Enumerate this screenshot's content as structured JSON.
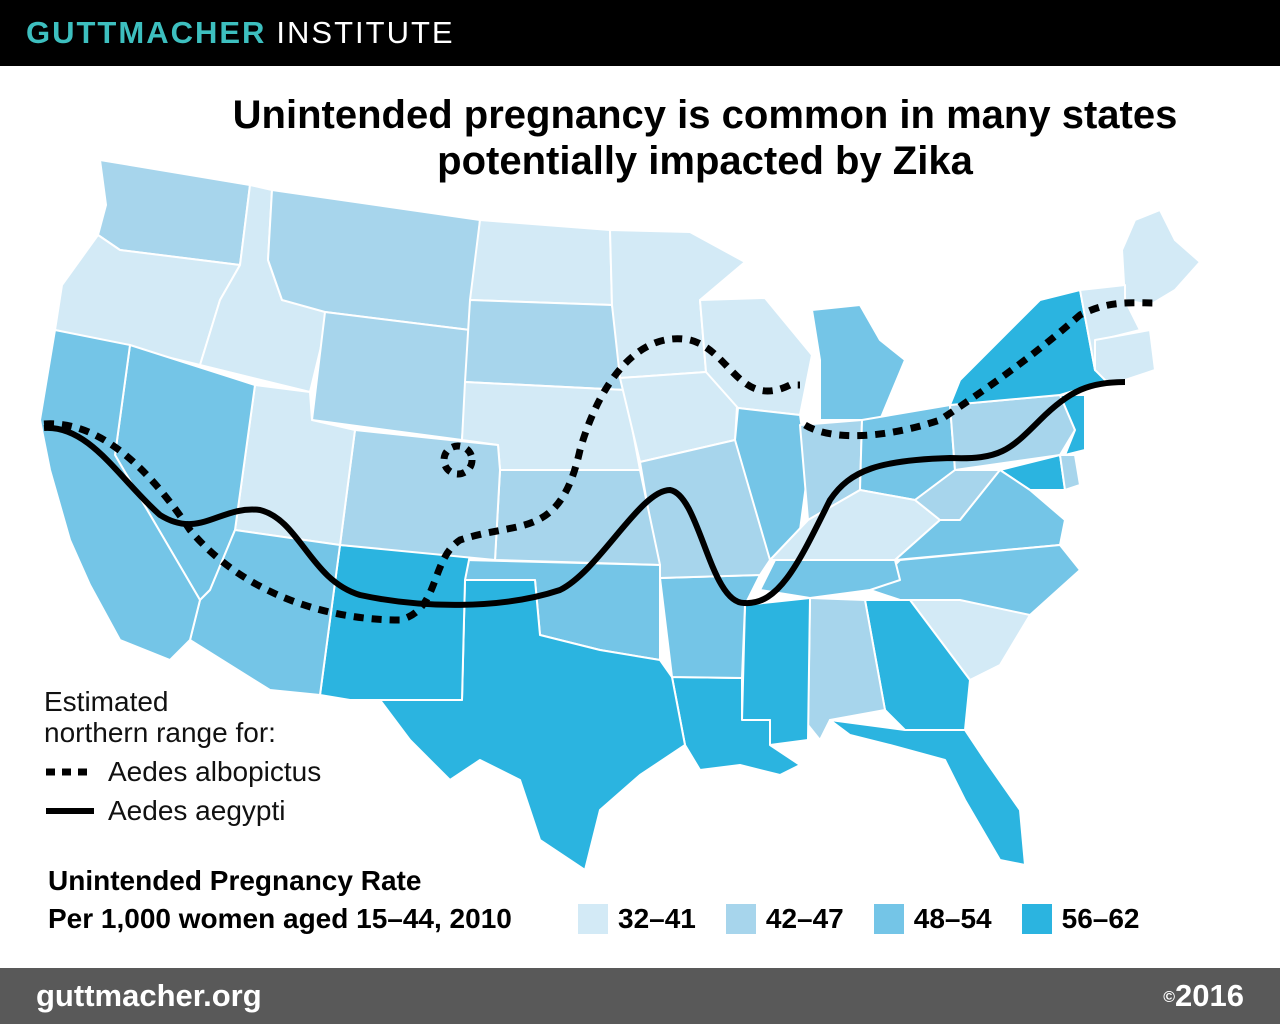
{
  "header": {
    "brand_primary": "GUTTMACHER",
    "brand_secondary": "INSTITUTE",
    "bar_color": "#000000",
    "brand_color": "#3dbfbf"
  },
  "title": {
    "line1": "Unintended pregnancy is common in many states",
    "line2": "potentially impacted by Zika"
  },
  "range_legend": {
    "heading_line1": "Estimated",
    "heading_line2": "northern range for:",
    "items": [
      {
        "label": "Aedes albopictus",
        "line_style": "dotted"
      },
      {
        "label": "Aedes aegypti",
        "line_style": "solid"
      }
    ]
  },
  "rate_legend": {
    "title_line1": "Unintended Pregnancy Rate",
    "title_line2": "Per 1,000 women aged 15–44, 2010",
    "bins": [
      {
        "label": "32–41",
        "color": "#d3eaf6"
      },
      {
        "label": "42–47",
        "color": "#a7d5ec"
      },
      {
        "label": "48–54",
        "color": "#74c5e7"
      },
      {
        "label": "56–62",
        "color": "#2bb4e0"
      }
    ]
  },
  "footer": {
    "url": "guttmacher.org",
    "copyright_symbol": "©",
    "year": "2016",
    "bar_color": "#595959"
  }
}
